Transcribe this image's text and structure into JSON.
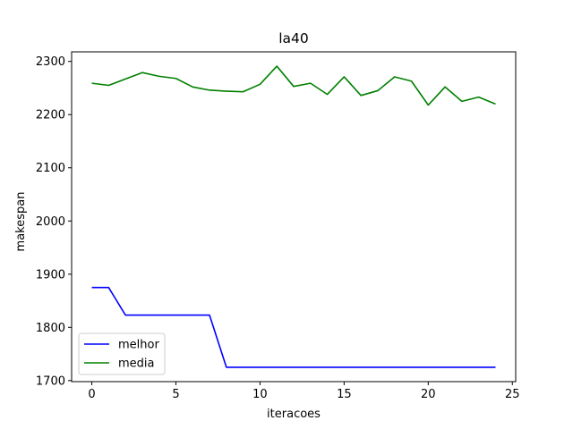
{
  "chart_data": {
    "type": "line",
    "title": "la40",
    "xlabel": "iteracoes",
    "ylabel": "makespan",
    "xlim": [
      -1.2,
      25.2
    ],
    "ylim": [
      1698,
      2318
    ],
    "xticks": [
      0,
      5,
      10,
      15,
      20,
      25
    ],
    "yticks": [
      1700,
      1800,
      1900,
      2000,
      2100,
      2200,
      2300
    ],
    "grid": false,
    "legend_position": "lower-left",
    "x": [
      0,
      1,
      2,
      3,
      4,
      5,
      6,
      7,
      8,
      9,
      10,
      11,
      12,
      13,
      14,
      15,
      16,
      17,
      18,
      19,
      20,
      21,
      22,
      23,
      24
    ],
    "series": [
      {
        "name": "melhor",
        "color": "#0000ff",
        "values": [
          1875,
          1875,
          1823,
          1823,
          1823,
          1823,
          1823,
          1823,
          1725,
          1725,
          1725,
          1725,
          1725,
          1725,
          1725,
          1725,
          1725,
          1725,
          1725,
          1725,
          1725,
          1725,
          1725,
          1725,
          1725
        ]
      },
      {
        "name": "media",
        "color": "#008000",
        "values": [
          2259,
          2255,
          2267,
          2279,
          2272,
          2268,
          2252,
          2246,
          2244,
          2243,
          2257,
          2291,
          2253,
          2259,
          2238,
          2271,
          2236,
          2245,
          2271,
          2263,
          2218,
          2252,
          2225,
          2233,
          2220
        ]
      }
    ]
  }
}
